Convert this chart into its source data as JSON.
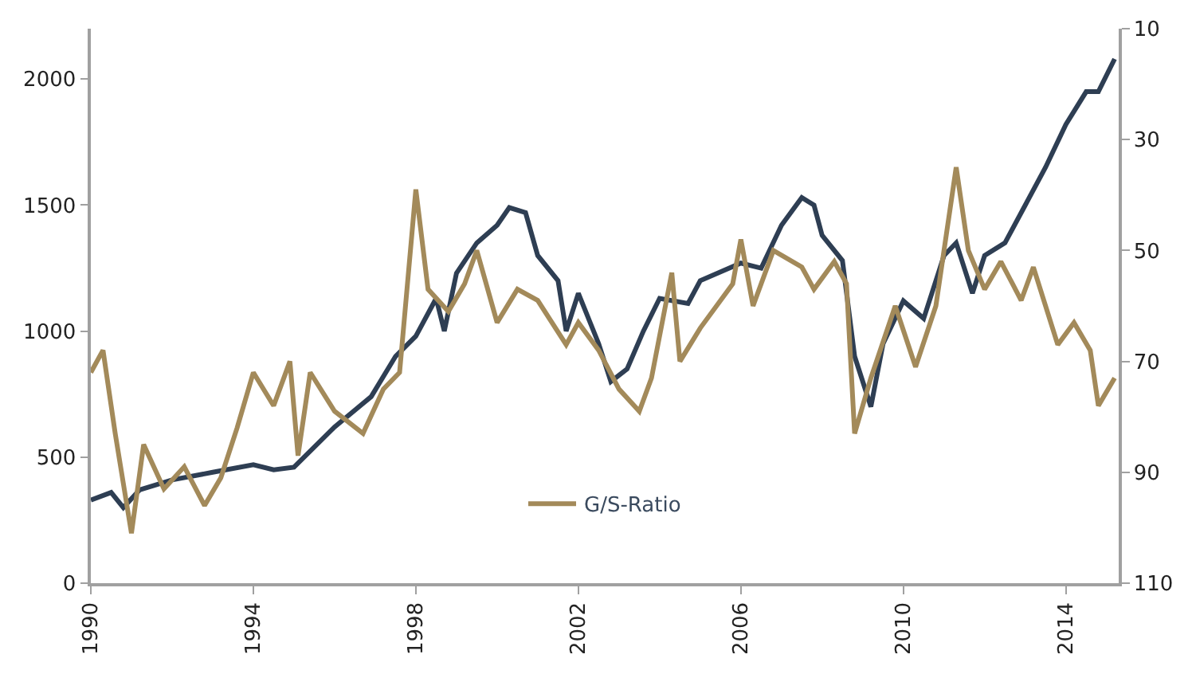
{
  "chart_data": {
    "type": "line",
    "xlim": [
      1990,
      2015.3
    ],
    "xticks": [
      1990,
      1994,
      1998,
      2002,
      2006,
      2010,
      2014
    ],
    "ylim": [
      0,
      2200
    ],
    "yticks": [
      0,
      500,
      1000,
      1500,
      2000
    ],
    "y2lim": [
      110,
      10
    ],
    "y2ticks": [
      10,
      30,
      50,
      70,
      90,
      110
    ],
    "legend": "bottom",
    "marker": "none",
    "line_style": "solid",
    "series": [
      {
        "color": "#2e3e53",
        "x": [
          1990,
          1990.5,
          1990.8,
          1991.2,
          1992,
          1993,
          1994,
          1994.5,
          1995,
          1996,
          1996.9,
          1997.5,
          1998,
          1998.5,
          1998.7,
          1999,
          1999.5,
          2000,
          2000.3,
          2000.7,
          2001,
          2001.5,
          2001.7,
          2002,
          2002.5,
          2002.8,
          2003.2,
          2003.6,
          2004,
          2004.7,
          2005,
          2006,
          2006.5,
          2007,
          2007.5,
          2007.8,
          2008,
          2008.5,
          2008.8,
          2009.2,
          2009.5,
          2010,
          2010.5,
          2011,
          2011.3,
          2011.7,
          2012,
          2012.5,
          2013,
          2013.5,
          2014,
          2014.5,
          2014.8,
          2015.2
        ],
        "values": [
          330,
          360,
          300,
          370,
          410,
          440,
          470,
          450,
          460,
          620,
          740,
          900,
          980,
          1130,
          1000,
          1230,
          1350,
          1420,
          1490,
          1470,
          1300,
          1200,
          1000,
          1150,
          950,
          800,
          850,
          1000,
          1130,
          1110,
          1200,
          1270,
          1250,
          1420,
          1530,
          1500,
          1380,
          1280,
          900,
          700,
          950,
          1120,
          1050,
          1300,
          1350,
          1150,
          1300,
          1350,
          1500,
          1650,
          1820,
          1950,
          1950,
          2080
        ]
      },
      {
        "name": "G/S-Ratio",
        "color": "#a38a5a",
        "axis": "y2",
        "x": [
          1990,
          1990.3,
          1990.6,
          1991,
          1991.3,
          1991.8,
          1992.3,
          1992.8,
          1993.2,
          1993.6,
          1994,
          1994.5,
          1994.9,
          1995.1,
          1995.4,
          1996,
          1996.7,
          1997.2,
          1997.6,
          1998,
          1998.3,
          1998.8,
          1999.2,
          1999.5,
          2000,
          2000.5,
          2001,
          2001.7,
          2002,
          2002.5,
          2003,
          2003.5,
          2003.8,
          2004.3,
          2004.5,
          2005,
          2005.8,
          2006,
          2006.3,
          2006.8,
          2007.5,
          2007.8,
          2008.3,
          2008.6,
          2008.8,
          2009.2,
          2009.8,
          2010.3,
          2010.8,
          2011.3,
          2011.6,
          2012,
          2012.4,
          2012.9,
          2013.2,
          2013.8,
          2014.2,
          2014.6,
          2014.8,
          2015.2
        ],
        "values": [
          72,
          68,
          83,
          101,
          85,
          93,
          89,
          96,
          91,
          82,
          72,
          78,
          70,
          87,
          72,
          79,
          83,
          75,
          72,
          39,
          57,
          61,
          56,
          50,
          63,
          57,
          59,
          67,
          63,
          68,
          75,
          79,
          73,
          54,
          70,
          64,
          56,
          48,
          60,
          50,
          53,
          57,
          52,
          56,
          83,
          73,
          60,
          71,
          60,
          35,
          50,
          57,
          52,
          59,
          53,
          67,
          63,
          68,
          78,
          73
        ]
      }
    ]
  }
}
